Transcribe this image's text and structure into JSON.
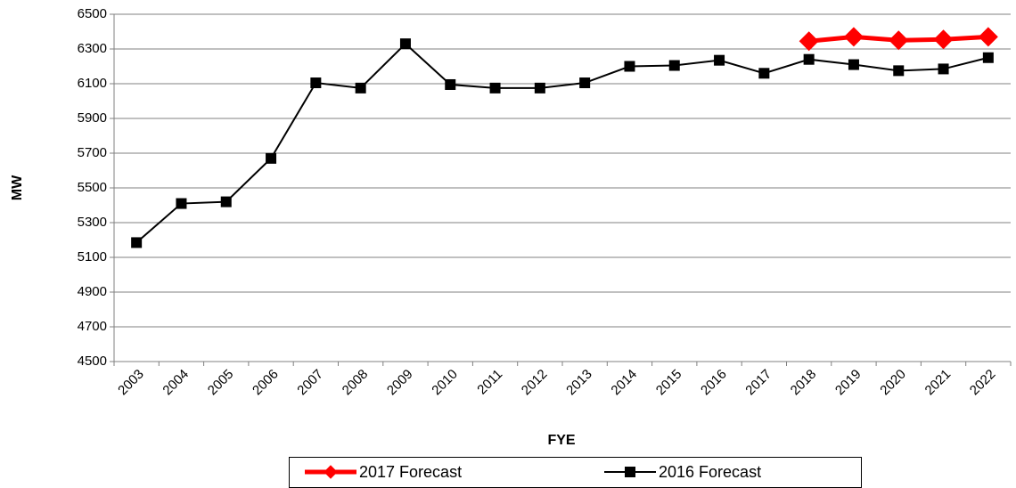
{
  "chart_data": {
    "type": "line",
    "xlabel": "FYE",
    "ylabel": "MW",
    "categories": [
      "2003",
      "2004",
      "2005",
      "2006",
      "2007",
      "2008",
      "2009",
      "2010",
      "2011",
      "2012",
      "2013",
      "2014",
      "2015",
      "2016",
      "2017",
      "2018",
      "2019",
      "2020",
      "2021",
      "2022"
    ],
    "series": [
      {
        "name": "2017 Forecast",
        "color": "#ff0000",
        "marker": "diamond",
        "values": [
          null,
          null,
          null,
          null,
          null,
          null,
          null,
          null,
          null,
          null,
          null,
          null,
          null,
          null,
          null,
          6345,
          6370,
          6350,
          6355,
          6370
        ]
      },
      {
        "name": "2016 Forecast",
        "color": "#000000",
        "marker": "square",
        "values": [
          5185,
          5410,
          5420,
          5670,
          6105,
          6075,
          6330,
          6095,
          6075,
          6075,
          6105,
          6200,
          6205,
          6235,
          6160,
          6240,
          6210,
          6175,
          6185,
          6250
        ]
      }
    ],
    "ylim": [
      4500,
      6500
    ],
    "yticks": [
      4500,
      4700,
      4900,
      5100,
      5300,
      5500,
      5700,
      5900,
      6100,
      6300,
      6500
    ],
    "grid": true,
    "legend": "bottom"
  }
}
